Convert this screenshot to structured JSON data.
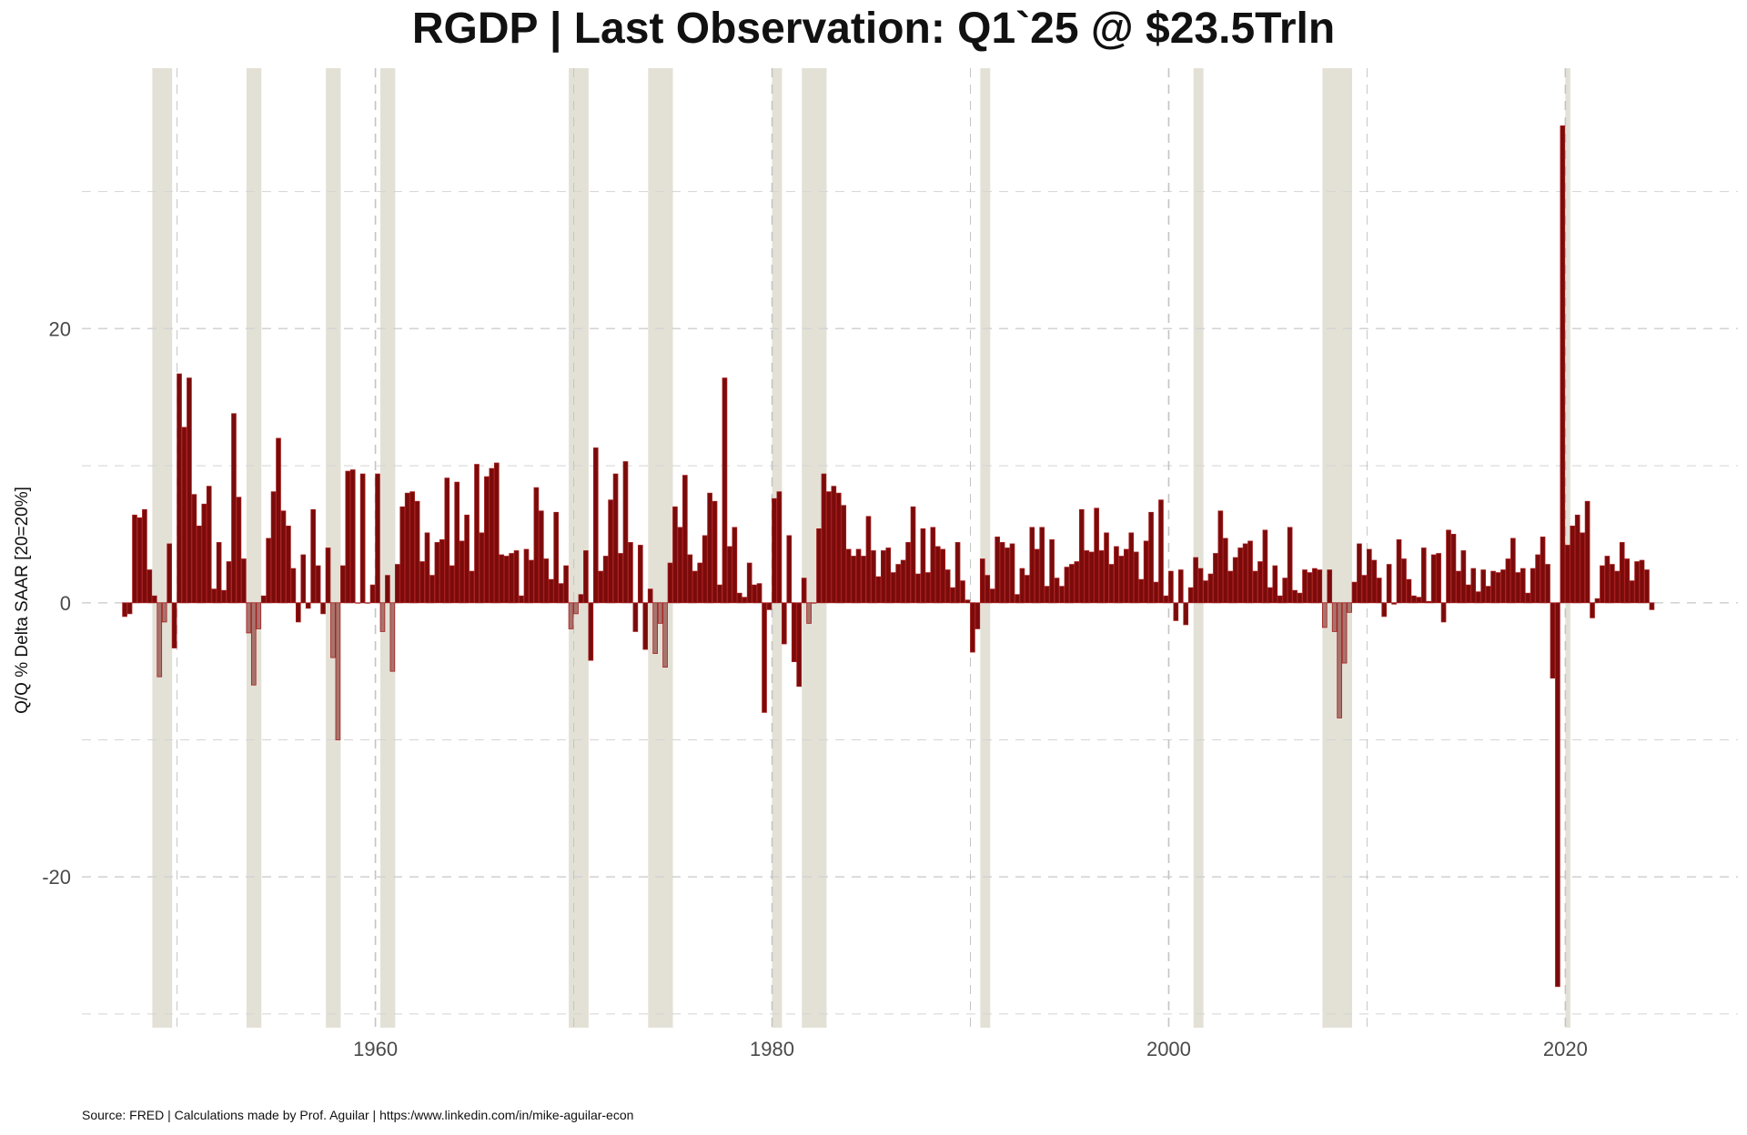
{
  "chart_data": {
    "type": "bar",
    "title": "RGDP | Last Observation: Q1`25 @ $23.5Trln",
    "ylabel": "Q/Q % Delta SAAR [20=20%]",
    "xlabel": "",
    "xlim": [
      1945.2,
      2028.7
    ],
    "ylim": [
      -31,
      39
    ],
    "x_ticks": [
      1960,
      1980,
      2000,
      2020
    ],
    "y_ticks": [
      -20,
      0,
      20
    ],
    "x_tick_labels": [
      "1960",
      "1980",
      "2000",
      "2020"
    ],
    "y_tick_labels": [
      "-20",
      "0",
      "20"
    ],
    "grid": true,
    "legend": "none",
    "recessions": [
      {
        "start": 1948.75,
        "end": 1949.75
      },
      {
        "start": 1953.5,
        "end": 1954.25
      },
      {
        "start": 1957.5,
        "end": 1958.25
      },
      {
        "start": 1960.25,
        "end": 1961.0
      },
      {
        "start": 1969.75,
        "end": 1970.75
      },
      {
        "start": 1973.75,
        "end": 1975.0
      },
      {
        "start": 1980.0,
        "end": 1980.5
      },
      {
        "start": 1981.5,
        "end": 1982.75
      },
      {
        "start": 1990.5,
        "end": 1991.0
      },
      {
        "start": 2001.25,
        "end": 2001.75
      },
      {
        "start": 2007.75,
        "end": 2009.25
      },
      {
        "start": 2020.0,
        "end": 2020.25
      }
    ],
    "series": [
      {
        "start_year": 1947.25,
        "frequency": "quarterly",
        "values": [
          -1.0,
          -0.8,
          6.4,
          6.2,
          6.8,
          2.4,
          0.5,
          -5.4,
          -1.4,
          4.3,
          -3.3,
          16.7,
          12.8,
          16.4,
          7.9,
          5.6,
          7.2,
          8.5,
          1.0,
          4.4,
          0.9,
          3.0,
          13.8,
          7.7,
          3.2,
          -2.2,
          -6.0,
          -1.9,
          0.5,
          4.7,
          8.1,
          12.0,
          6.7,
          5.6,
          2.5,
          -1.4,
          3.5,
          -0.4,
          6.8,
          2.7,
          -0.8,
          4.0,
          -4.0,
          -10.0,
          2.7,
          9.6,
          9.7,
          0.0,
          9.4,
          0.0,
          1.3,
          9.4,
          -2.1,
          2.0,
          -5.0,
          2.8,
          7.0,
          8.0,
          8.1,
          7.4,
          3.0,
          5.1,
          2.0,
          4.4,
          4.6,
          9.1,
          2.7,
          8.8,
          4.5,
          6.4,
          2.3,
          10.1,
          5.1,
          9.2,
          9.8,
          10.2,
          3.5,
          3.4,
          3.6,
          3.8,
          0.5,
          3.9,
          3.1,
          8.4,
          6.7,
          3.2,
          1.7,
          6.6,
          1.4,
          2.7,
          -1.9,
          -0.8,
          0.6,
          3.8,
          -4.2,
          11.3,
          2.3,
          3.4,
          7.5,
          9.4,
          3.6,
          10.3,
          4.4,
          -2.1,
          4.2,
          -3.4,
          1.0,
          -3.7,
          -1.5,
          -4.7,
          2.9,
          7.0,
          5.5,
          9.3,
          3.5,
          2.3,
          2.9,
          4.9,
          8.0,
          7.4,
          1.3,
          16.4,
          4.1,
          5.5,
          0.7,
          0.4,
          2.9,
          1.3,
          1.4,
          -8.0,
          -0.5,
          7.6,
          8.1,
          -3.0,
          4.9,
          -4.3,
          -6.1,
          1.8,
          -1.5,
          0.0,
          5.4,
          9.4,
          8.1,
          8.5,
          8.0,
          7.1,
          3.9,
          3.4,
          3.9,
          3.4,
          6.3,
          3.8,
          1.9,
          3.8,
          4.0,
          2.2,
          2.8,
          3.1,
          4.4,
          7.0,
          2.1,
          5.4,
          2.2,
          5.5,
          4.1,
          3.9,
          2.4,
          1.1,
          4.4,
          1.6,
          0.2,
          -3.6,
          -1.9,
          3.2,
          2.0,
          1.0,
          4.8,
          4.4,
          4.0,
          4.3,
          0.6,
          2.5,
          2.0,
          5.5,
          3.9,
          5.5,
          1.2,
          4.6,
          1.8,
          1.2,
          2.6,
          2.8,
          3.0,
          6.8,
          3.8,
          3.7,
          6.9,
          3.8,
          5.1,
          2.8,
          4.1,
          3.4,
          3.9,
          5.1,
          3.7,
          1.7,
          4.5,
          6.6,
          1.5,
          7.5,
          0.5,
          2.3,
          -1.3,
          2.4,
          -1.6,
          1.1,
          3.3,
          2.5,
          1.6,
          2.1,
          3.6,
          6.7,
          4.7,
          2.3,
          3.3,
          4.0,
          4.3,
          4.5,
          2.3,
          3.0,
          5.3,
          1.1,
          2.7,
          0.5,
          1.8,
          5.5,
          0.9,
          0.7,
          2.4,
          2.2,
          2.5,
          2.4,
          -1.8,
          2.4,
          -2.1,
          -8.4,
          -4.4,
          -0.7,
          1.5,
          4.3,
          2.0,
          3.9,
          3.1,
          1.8,
          -1.0,
          2.8,
          -0.1,
          4.6,
          3.2,
          1.7,
          0.5,
          0.4,
          4.0,
          0.1,
          3.5,
          3.6,
          -1.4,
          5.3,
          5.0,
          2.3,
          3.8,
          1.3,
          2.5,
          0.8,
          2.4,
          1.2,
          2.3,
          2.2,
          2.4,
          3.2,
          4.7,
          2.2,
          2.5,
          0.7,
          2.5,
          3.5,
          4.8,
          2.8,
          -5.5,
          -28.0,
          34.8,
          4.2,
          5.6,
          6.4,
          5.1,
          7.4,
          -1.1,
          0.3,
          2.7,
          3.4,
          2.8,
          2.3,
          4.4,
          3.2,
          1.6,
          3.0,
          3.1,
          2.4,
          -0.5
        ]
      }
    ],
    "colors": {
      "bar_fill": "#7a0b0b",
      "bar_outline": "#a61e1e",
      "recession_bar_fill": "#a7746c",
      "recession_band": "#e3e1d6",
      "gridline": "#d4d4d4",
      "recession_gridline": "#c4c4c4"
    }
  },
  "footer": {
    "source": "Source: FRED | Calculations made by Prof. Aguilar | https:/www.linkedin.com/in/mike-aguilar-econ"
  }
}
